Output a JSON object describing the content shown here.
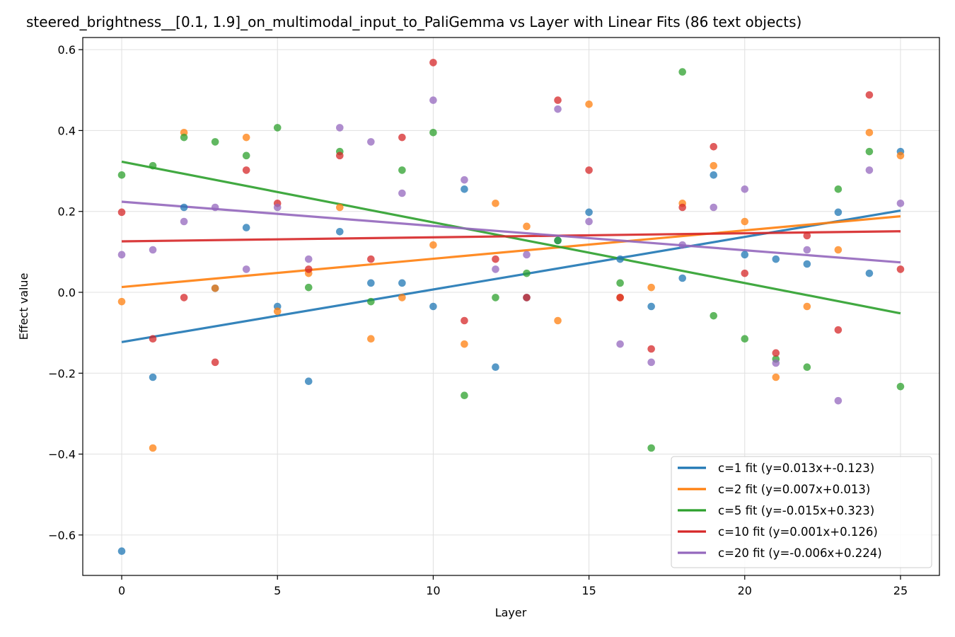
{
  "chart_data": {
    "type": "scatter",
    "title": "steered_brightness__[0.1, 1.9]_on_multimodal_input_to_PaliGemma vs Layer with Linear Fits (86 text objects)",
    "xlabel": "Layer",
    "ylabel": "Effect value",
    "xlim": [
      -1.25,
      26.25
    ],
    "ylim": [
      -0.7,
      0.63
    ],
    "xticks": [
      0,
      5,
      10,
      15,
      20,
      25
    ],
    "yticks": [
      -0.6,
      -0.4,
      -0.2,
      0.0,
      0.2,
      0.4,
      0.6
    ],
    "ytick_labels": [
      "−0.6",
      "−0.4",
      "−0.2",
      "0.0",
      "0.2",
      "0.4",
      "0.6"
    ],
    "grid": true,
    "legend_position": "lower-right",
    "series": [
      {
        "name": "c=1",
        "color": "#1f77b4",
        "fit_label": "c=1 fit (y=0.013x+-0.123)",
        "slope": 0.013,
        "intercept": -0.123,
        "points": [
          [
            0,
            -0.64
          ],
          [
            1,
            -0.21
          ],
          [
            2,
            0.21
          ],
          [
            3,
            0.01
          ],
          [
            4,
            0.16
          ],
          [
            5,
            -0.035
          ],
          [
            6,
            -0.22
          ],
          [
            7,
            0.15
          ],
          [
            8,
            0.023
          ],
          [
            9,
            0.023
          ],
          [
            10,
            -0.035
          ],
          [
            11,
            0.255
          ],
          [
            12,
            -0.185
          ],
          [
            13,
            -0.013
          ],
          [
            14,
            0.128
          ],
          [
            15,
            0.198
          ],
          [
            16,
            0.082
          ],
          [
            17,
            -0.035
          ],
          [
            18,
            0.035
          ],
          [
            19,
            0.29
          ],
          [
            20,
            0.093
          ],
          [
            21,
            0.082
          ],
          [
            22,
            0.07
          ],
          [
            23,
            0.198
          ],
          [
            24,
            0.047
          ],
          [
            25,
            0.348
          ]
        ]
      },
      {
        "name": "c=2",
        "color": "#ff7f0e",
        "fit_label": "c=2 fit (y=0.007x+0.013)",
        "slope": 0.007,
        "intercept": 0.013,
        "points": [
          [
            0,
            -0.023
          ],
          [
            1,
            -0.385
          ],
          [
            2,
            0.395
          ],
          [
            3,
            0.01
          ],
          [
            4,
            0.383
          ],
          [
            5,
            -0.047
          ],
          [
            6,
            0.047
          ],
          [
            7,
            0.21
          ],
          [
            8,
            -0.115
          ],
          [
            9,
            -0.013
          ],
          [
            10,
            0.117
          ],
          [
            11,
            -0.128
          ],
          [
            12,
            0.22
          ],
          [
            13,
            0.163
          ],
          [
            14,
            -0.07
          ],
          [
            15,
            0.465
          ],
          [
            16,
            -0.013
          ],
          [
            17,
            0.012
          ],
          [
            18,
            0.22
          ],
          [
            19,
            0.313
          ],
          [
            20,
            0.175
          ],
          [
            21,
            -0.21
          ],
          [
            22,
            -0.035
          ],
          [
            23,
            0.105
          ],
          [
            24,
            0.395
          ],
          [
            25,
            0.338
          ]
        ]
      },
      {
        "name": "c=5",
        "color": "#2ca02c",
        "fit_label": "c=5 fit (y=-0.015x+0.323)",
        "slope": -0.015,
        "intercept": 0.323,
        "points": [
          [
            0,
            0.29
          ],
          [
            1,
            0.313
          ],
          [
            2,
            0.383
          ],
          [
            3,
            0.372
          ],
          [
            4,
            0.338
          ],
          [
            5,
            0.407
          ],
          [
            6,
            0.012
          ],
          [
            7,
            0.348
          ],
          [
            8,
            -0.023
          ],
          [
            9,
            0.302
          ],
          [
            10,
            0.395
          ],
          [
            11,
            -0.255
          ],
          [
            12,
            -0.013
          ],
          [
            13,
            0.047
          ],
          [
            14,
            0.128
          ],
          [
            16,
            0.023
          ],
          [
            17,
            -0.385
          ],
          [
            18,
            0.545
          ],
          [
            19,
            -0.058
          ],
          [
            20,
            -0.115
          ],
          [
            21,
            -0.165
          ],
          [
            22,
            -0.185
          ],
          [
            23,
            0.255
          ],
          [
            24,
            0.348
          ],
          [
            25,
            -0.233
          ]
        ]
      },
      {
        "name": "c=10",
        "color": "#d62728",
        "fit_label": "c=10 fit (y=0.001x+0.126)",
        "slope": 0.001,
        "intercept": 0.126,
        "points": [
          [
            0,
            0.198
          ],
          [
            1,
            -0.115
          ],
          [
            2,
            -0.013
          ],
          [
            3,
            -0.173
          ],
          [
            4,
            0.302
          ],
          [
            5,
            0.22
          ],
          [
            6,
            0.057
          ],
          [
            7,
            0.338
          ],
          [
            8,
            0.082
          ],
          [
            9,
            0.383
          ],
          [
            10,
            0.568
          ],
          [
            11,
            -0.07
          ],
          [
            12,
            0.082
          ],
          [
            13,
            -0.013
          ],
          [
            14,
            0.475
          ],
          [
            15,
            0.302
          ],
          [
            16,
            -0.013
          ],
          [
            17,
            -0.14
          ],
          [
            18,
            0.21
          ],
          [
            19,
            0.36
          ],
          [
            20,
            0.047
          ],
          [
            21,
            -0.15
          ],
          [
            22,
            0.14
          ],
          [
            23,
            -0.093
          ],
          [
            24,
            0.488
          ],
          [
            25,
            0.057
          ]
        ]
      },
      {
        "name": "c=20",
        "color": "#9467bd",
        "fit_label": "c=20 fit (y=-0.006x+0.224)",
        "slope": -0.006,
        "intercept": 0.224,
        "points": [
          [
            0,
            0.093
          ],
          [
            1,
            0.105
          ],
          [
            2,
            0.175
          ],
          [
            3,
            0.21
          ],
          [
            4,
            0.057
          ],
          [
            5,
            0.21
          ],
          [
            6,
            0.082
          ],
          [
            7,
            0.407
          ],
          [
            8,
            0.372
          ],
          [
            9,
            0.245
          ],
          [
            10,
            0.475
          ],
          [
            11,
            0.278
          ],
          [
            12,
            0.057
          ],
          [
            13,
            0.093
          ],
          [
            14,
            0.453
          ],
          [
            15,
            0.175
          ],
          [
            16,
            -0.128
          ],
          [
            17,
            -0.173
          ],
          [
            18,
            0.117
          ],
          [
            19,
            0.21
          ],
          [
            20,
            0.255
          ],
          [
            21,
            -0.175
          ],
          [
            22,
            0.105
          ],
          [
            23,
            -0.268
          ],
          [
            24,
            0.302
          ],
          [
            25,
            0.22
          ]
        ]
      }
    ]
  }
}
